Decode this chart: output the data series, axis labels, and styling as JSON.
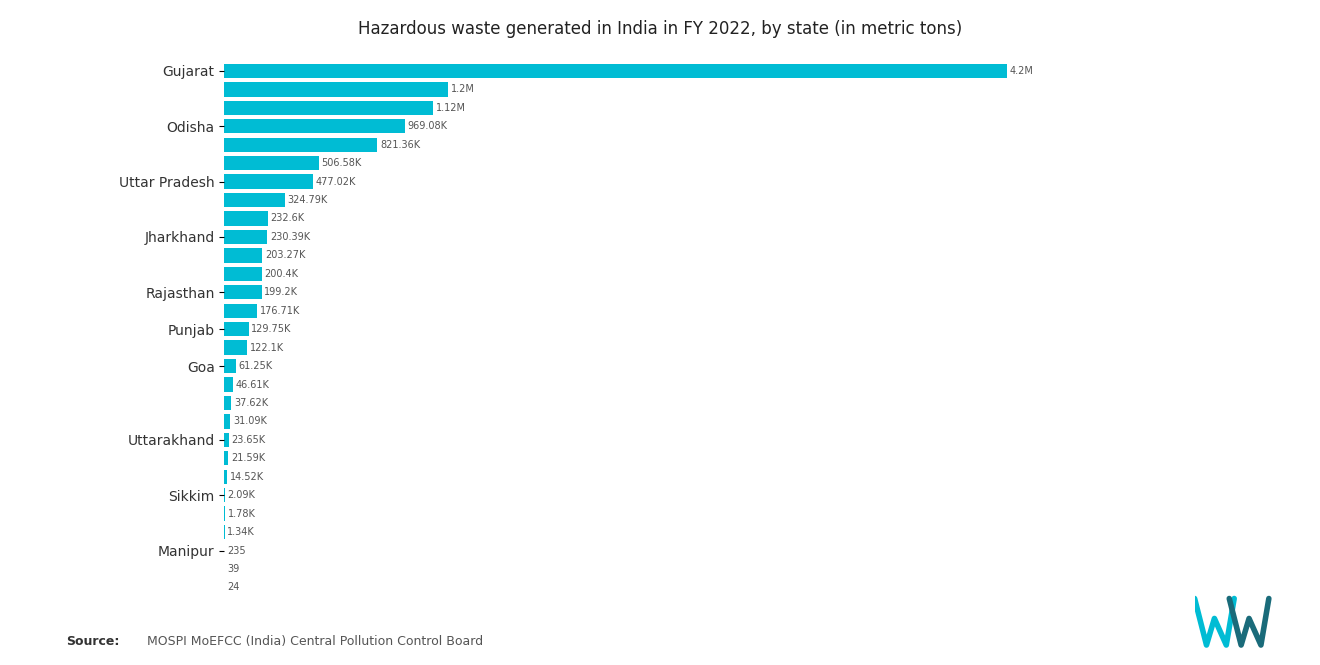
{
  "title": "Hazardous waste generated in India in FY 2022, by state (in metric tons)",
  "source_bold": "Source:",
  "source_rest": "  MOSPI MoEFCC (India) Central Pollution Control Board",
  "bar_color": "#00BCD4",
  "background_color": "#ffffff",
  "values": [
    4200000,
    1200000,
    1120000,
    969080,
    821360,
    506580,
    477020,
    324790,
    232600,
    230390,
    203270,
    200400,
    199200,
    176710,
    129750,
    122100,
    61250,
    46610,
    37620,
    31090,
    23650,
    21590,
    14520,
    2090,
    1780,
    1340,
    235,
    39,
    24
  ],
  "value_labels": [
    "4.2M",
    "1.2M",
    "1.12M",
    "969.08K",
    "821.36K",
    "506.58K",
    "477.02K",
    "324.79K",
    "232.6K",
    "230.39K",
    "203.27K",
    "200.4K",
    "199.2K",
    "176.71K",
    "129.75K",
    "122.1K",
    "61.25K",
    "46.61K",
    "37.62K",
    "31.09K",
    "23.65K",
    "21.59K",
    "14.52K",
    "2.09K",
    "1.78K",
    "1.34K",
    "235",
    "39",
    "24"
  ],
  "state_label_indices": [
    0,
    3,
    6,
    9,
    12,
    14,
    16,
    20,
    23,
    26
  ],
  "state_names": [
    "Gujarat",
    "Odisha",
    "Uttar Pradesh",
    "Jharkhand",
    "Rajasthan",
    "Punjab",
    "Goa",
    "Uttarakhand",
    "Sikkim",
    "Manipur"
  ],
  "xlim_max": 4960000,
  "title_fontsize": 12,
  "label_fontsize": 8,
  "value_fontsize": 7,
  "ytick_fontsize": 10
}
